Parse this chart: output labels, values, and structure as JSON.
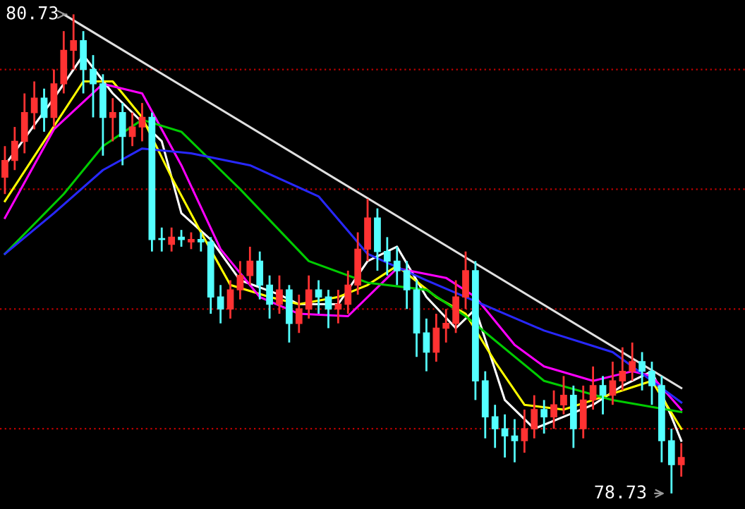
{
  "chart_data": {
    "type": "candlestick",
    "categories": [
      null,
      null,
      null,
      null,
      null,
      null,
      null,
      null,
      null,
      null,
      null,
      null,
      null,
      null,
      null,
      null,
      null,
      null,
      null,
      null,
      null,
      null,
      null,
      null,
      null,
      null,
      null,
      null,
      null,
      null,
      null,
      null,
      null,
      null,
      null,
      null,
      null,
      null,
      null,
      null,
      null,
      null,
      null,
      null,
      null,
      null,
      null,
      null,
      null,
      null,
      null,
      null,
      null,
      null,
      null,
      null,
      null,
      null,
      null,
      null,
      null,
      null,
      null,
      null,
      null,
      null,
      null,
      null,
      null,
      null
    ],
    "ohlc": [
      [
        80.05,
        80.18,
        79.98,
        80.12
      ],
      [
        80.12,
        80.26,
        80.08,
        80.2
      ],
      [
        80.2,
        80.4,
        80.15,
        80.32
      ],
      [
        80.32,
        80.45,
        80.25,
        80.38
      ],
      [
        80.38,
        80.42,
        80.24,
        80.3
      ],
      [
        80.3,
        80.5,
        80.26,
        80.44
      ],
      [
        80.44,
        80.66,
        80.4,
        80.58
      ],
      [
        80.58,
        80.73,
        80.5,
        80.62
      ],
      [
        80.62,
        80.66,
        80.4,
        80.5
      ],
      [
        80.5,
        80.56,
        80.3,
        80.44
      ],
      [
        80.44,
        80.48,
        80.14,
        80.3
      ],
      [
        80.3,
        80.38,
        80.2,
        80.32
      ],
      [
        80.32,
        80.36,
        80.1,
        80.22
      ],
      [
        80.22,
        80.32,
        80.18,
        80.26
      ],
      [
        80.26,
        80.36,
        80.2,
        80.3
      ],
      [
        80.3,
        80.32,
        79.74,
        79.79
      ],
      [
        79.79,
        79.84,
        79.74,
        79.79
      ],
      [
        79.77,
        79.84,
        79.74,
        79.8
      ],
      [
        79.8,
        79.83,
        79.76,
        79.79
      ],
      [
        79.78,
        79.82,
        79.75,
        79.79
      ],
      [
        79.79,
        79.82,
        79.74,
        79.78
      ],
      [
        79.78,
        79.8,
        79.48,
        79.55
      ],
      [
        79.55,
        79.6,
        79.44,
        79.5
      ],
      [
        79.5,
        79.62,
        79.46,
        79.58
      ],
      [
        79.58,
        79.7,
        79.54,
        79.64
      ],
      [
        79.64,
        79.76,
        79.6,
        79.7
      ],
      [
        79.7,
        79.74,
        79.54,
        79.6
      ],
      [
        79.6,
        79.64,
        79.46,
        79.52
      ],
      [
        79.52,
        79.64,
        79.48,
        79.58
      ],
      [
        79.58,
        79.6,
        79.36,
        79.44
      ],
      [
        79.44,
        79.56,
        79.4,
        79.5
      ],
      [
        79.5,
        79.64,
        79.46,
        79.58
      ],
      [
        79.58,
        79.62,
        79.48,
        79.55
      ],
      [
        79.55,
        79.58,
        79.42,
        79.5
      ],
      [
        79.5,
        79.58,
        79.44,
        79.52
      ],
      [
        79.52,
        79.66,
        79.48,
        79.6
      ],
      [
        79.6,
        79.82,
        79.56,
        79.75
      ],
      [
        79.75,
        79.96,
        79.7,
        79.88
      ],
      [
        79.88,
        79.92,
        79.66,
        79.74
      ],
      [
        79.74,
        79.8,
        79.64,
        79.7
      ],
      [
        79.7,
        79.76,
        79.6,
        79.66
      ],
      [
        79.66,
        79.7,
        79.5,
        79.58
      ],
      [
        79.58,
        79.62,
        79.3,
        79.4
      ],
      [
        79.4,
        79.46,
        79.24,
        79.32
      ],
      [
        79.32,
        79.48,
        79.28,
        79.42
      ],
      [
        79.42,
        79.5,
        79.36,
        79.44
      ],
      [
        79.44,
        79.62,
        79.4,
        79.55
      ],
      [
        79.55,
        79.74,
        79.5,
        79.66
      ],
      [
        79.66,
        79.7,
        79.12,
        79.2
      ],
      [
        79.2,
        79.24,
        78.96,
        79.05
      ],
      [
        79.05,
        79.1,
        78.92,
        79.0
      ],
      [
        79.0,
        79.06,
        78.88,
        78.97
      ],
      [
        78.97,
        79.04,
        78.86,
        78.95
      ],
      [
        78.95,
        79.08,
        78.9,
        79.0
      ],
      [
        79.0,
        79.14,
        78.96,
        79.08
      ],
      [
        79.08,
        79.12,
        78.98,
        79.05
      ],
      [
        79.05,
        79.16,
        79.0,
        79.1
      ],
      [
        79.1,
        79.22,
        79.06,
        79.14
      ],
      [
        79.14,
        79.18,
        78.92,
        79.0
      ],
      [
        79.0,
        79.18,
        78.96,
        79.12
      ],
      [
        79.12,
        79.26,
        79.08,
        79.18
      ],
      [
        79.18,
        79.22,
        79.06,
        79.14
      ],
      [
        79.14,
        79.28,
        79.1,
        79.2
      ],
      [
        79.2,
        79.34,
        79.16,
        79.24
      ],
      [
        79.24,
        79.36,
        79.2,
        79.28
      ],
      [
        79.28,
        79.32,
        79.16,
        79.24
      ],
      [
        79.24,
        79.28,
        79.1,
        79.18
      ],
      [
        79.18,
        79.22,
        78.86,
        78.95
      ],
      [
        78.95,
        79.0,
        78.73,
        78.85
      ],
      [
        78.85,
        78.94,
        78.8,
        78.88
      ]
    ],
    "colors": [
      "#ff3232",
      "#ff3232",
      "#ff3232",
      "#ff3232",
      "#54ffff",
      "#ff3232",
      "#ff3232",
      "#ff3232",
      "#54ffff",
      "#54ffff",
      "#54ffff",
      "#ff3232",
      "#54ffff",
      "#ff3232",
      "#ff3232",
      "#54ffff",
      "#54ffff",
      "#ff3232",
      "#54ffff",
      "#ff3232",
      "#54ffff",
      "#54ffff",
      "#54ffff",
      "#ff3232",
      "#ff3232",
      "#ff3232",
      "#54ffff",
      "#54ffff",
      "#ff3232",
      "#54ffff",
      "#ff3232",
      "#ff3232",
      "#54ffff",
      "#54ffff",
      "#ff3232",
      "#ff3232",
      "#ff3232",
      "#ff3232",
      "#54ffff",
      "#54ffff",
      "#54ffff",
      "#54ffff",
      "#54ffff",
      "#54ffff",
      "#ff3232",
      "#ff3232",
      "#ff3232",
      "#ff3232",
      "#54ffff",
      "#54ffff",
      "#54ffff",
      "#54ffff",
      "#54ffff",
      "#ff3232",
      "#ff3232",
      "#54ffff",
      "#ff3232",
      "#ff3232",
      "#54ffff",
      "#ff3232",
      "#ff3232",
      "#54ffff",
      "#ff3232",
      "#ff3232",
      "#ff3232",
      "#54ffff",
      "#54ffff",
      "#54ffff",
      "#54ffff",
      "#ff3232"
    ],
    "series": [
      {
        "type": "line",
        "color": "#ffffff",
        "values": [
          80.1,
          null,
          null,
          null,
          null,
          80.38,
          null,
          null,
          80.56,
          null,
          null,
          80.4,
          null,
          null,
          80.28,
          null,
          80.2,
          null,
          79.9,
          null,
          null,
          79.79,
          null,
          null,
          79.62,
          null,
          null,
          null,
          79.56,
          null,
          79.52,
          null,
          null,
          null,
          79.52,
          null,
          null,
          79.7,
          null,
          null,
          79.76,
          null,
          null,
          79.55,
          null,
          null,
          79.42,
          null,
          79.5,
          null,
          null,
          79.12,
          null,
          null,
          79.0,
          null,
          null,
          79.05,
          null,
          null,
          79.1,
          null,
          null,
          79.18,
          null,
          null,
          79.24,
          null,
          79.05,
          78.95
        ]
      },
      {
        "type": "line",
        "color": "#ffff00",
        "values": [
          79.95,
          null,
          null,
          null,
          80.2,
          null,
          null,
          null,
          80.45,
          null,
          null,
          80.45,
          null,
          null,
          80.3,
          null,
          null,
          80.05,
          null,
          null,
          79.82,
          null,
          null,
          79.6,
          null,
          null,
          null,
          79.55,
          null,
          null,
          79.52,
          null,
          null,
          null,
          79.55,
          null,
          null,
          79.6,
          null,
          null,
          79.68,
          null,
          null,
          null,
          79.55,
          null,
          null,
          79.48,
          null,
          null,
          79.28,
          null,
          null,
          79.1,
          null,
          null,
          null,
          79.08,
          null,
          null,
          79.12,
          null,
          null,
          79.16,
          null,
          null,
          79.2,
          null,
          null,
          79.0
        ]
      },
      {
        "type": "line",
        "color": "#ff00ff",
        "values": [
          79.88,
          null,
          null,
          null,
          null,
          80.25,
          null,
          null,
          null,
          null,
          80.44,
          null,
          null,
          null,
          80.4,
          null,
          null,
          null,
          80.1,
          null,
          null,
          null,
          79.75,
          null,
          null,
          null,
          79.55,
          null,
          null,
          null,
          79.48,
          null,
          null,
          null,
          null,
          79.47,
          null,
          null,
          null,
          null,
          79.67,
          null,
          null,
          null,
          null,
          79.63,
          null,
          null,
          79.55,
          null,
          null,
          null,
          79.35,
          null,
          null,
          79.26,
          null,
          null,
          null,
          null,
          79.2,
          null,
          null,
          null,
          79.24,
          null,
          79.22,
          null,
          null,
          79.08
        ]
      },
      {
        "type": "line",
        "color": "#00cc00",
        "values": [
          79.73,
          null,
          null,
          null,
          null,
          null,
          79.98,
          null,
          null,
          null,
          80.18,
          null,
          null,
          null,
          80.29,
          null,
          null,
          null,
          80.24,
          null,
          null,
          null,
          null,
          null,
          80.0,
          null,
          null,
          null,
          null,
          null,
          null,
          79.7,
          null,
          null,
          null,
          null,
          null,
          79.61,
          null,
          null,
          null,
          null,
          null,
          79.58,
          null,
          null,
          null,
          79.47,
          null,
          null,
          null,
          null,
          null,
          null,
          null,
          79.2,
          null,
          null,
          null,
          null,
          null,
          null,
          79.12,
          null,
          null,
          null,
          null,
          null,
          null,
          79.07
        ]
      },
      {
        "type": "line",
        "color": "#2828ff",
        "values": [
          79.73,
          null,
          null,
          null,
          null,
          79.9,
          null,
          null,
          null,
          null,
          80.08,
          null,
          null,
          null,
          80.17,
          null,
          null,
          null,
          null,
          80.15,
          null,
          null,
          null,
          null,
          null,
          80.1,
          null,
          null,
          null,
          null,
          null,
          null,
          79.97,
          null,
          null,
          null,
          null,
          79.73,
          null,
          null,
          null,
          null,
          null,
          79.62,
          null,
          null,
          null,
          79.55,
          null,
          null,
          null,
          null,
          null,
          null,
          null,
          79.41,
          null,
          null,
          null,
          null,
          null,
          null,
          79.32,
          null,
          null,
          null,
          null,
          null,
          null,
          79.11
        ]
      },
      {
        "type": "line",
        "color": "#e0e0e0",
        "values": [
          null,
          null,
          null,
          null,
          null,
          null,
          80.73,
          null,
          null,
          null,
          null,
          null,
          null,
          null,
          null,
          null,
          null,
          null,
          null,
          null,
          null,
          null,
          null,
          null,
          null,
          null,
          null,
          null,
          null,
          null,
          null,
          null,
          null,
          null,
          null,
          null,
          null,
          null,
          null,
          null,
          null,
          null,
          null,
          null,
          null,
          null,
          null,
          null,
          null,
          null,
          null,
          null,
          null,
          null,
          null,
          null,
          null,
          null,
          null,
          null,
          null,
          null,
          null,
          null,
          null,
          null,
          null,
          null,
          null,
          79.17
        ]
      }
    ],
    "ylim": [
      78.665,
      80.79
    ],
    "yticks": [
      {
        "value": 79.0,
        "label": null
      },
      {
        "value": 79.5,
        "label": null
      },
      {
        "value": 80.0,
        "label": null
      },
      {
        "value": 80.5,
        "label": null
      }
    ],
    "grid": "y",
    "annotations": [
      "80.73",
      "78.73"
    ]
  }
}
